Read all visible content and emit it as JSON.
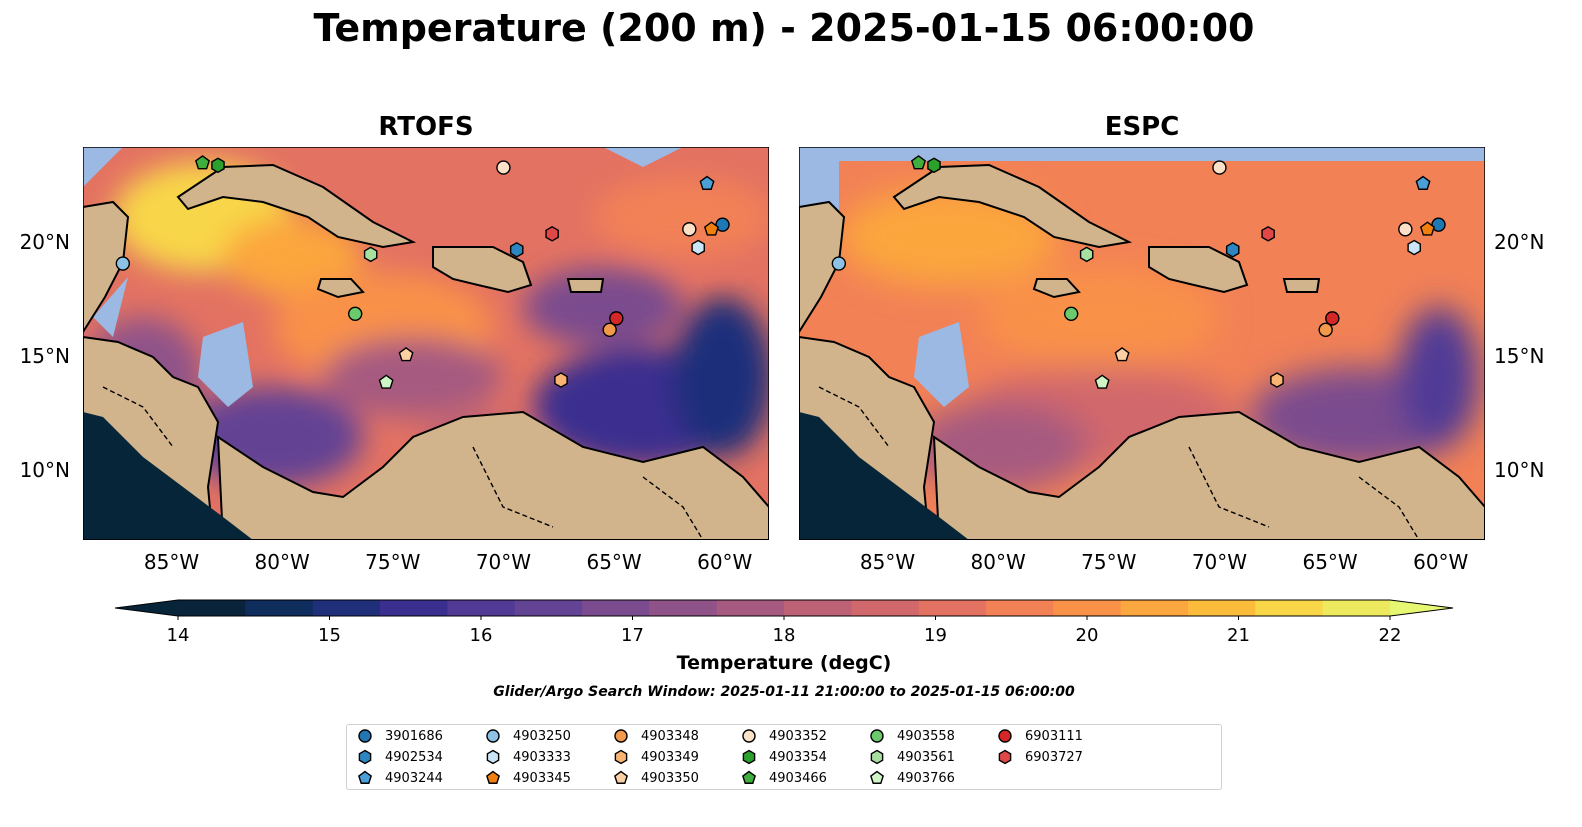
{
  "title": "Temperature (200 m) - 2025-01-15 06:00:00",
  "panels": [
    {
      "name": "RTOFS"
    },
    {
      "name": "ESPC"
    }
  ],
  "lon_ticks": [
    "85°W",
    "80°W",
    "75°W",
    "70°W",
    "65°W",
    "60°W"
  ],
  "lat_ticks": [
    "20°N",
    "15°N",
    "10°N"
  ],
  "map_extent": {
    "lon": [
      -89,
      -58
    ],
    "lat": [
      7,
      24.2
    ]
  },
  "colorbar": {
    "label": "Temperature (degC)",
    "ticks": [
      "14",
      "15",
      "16",
      "17",
      "18",
      "19",
      "20",
      "21",
      "22"
    ],
    "range": [
      14,
      22
    ],
    "colors": [
      "#08233a",
      "#0e2d5c",
      "#1f2f7a",
      "#3a2f8f",
      "#503a96",
      "#634394",
      "#7a4b8e",
      "#8f5389",
      "#a65a80",
      "#bc6176",
      "#d1686c",
      "#e37262",
      "#f28156",
      "#f99148",
      "#fba63e",
      "#fcbc3b",
      "#f8d648",
      "#eeea5f"
    ],
    "under_color": "#062538",
    "over_color": "#e8f772"
  },
  "search_window": "Glider/Argo Search Window: 2025-01-11 21:00:00 to 2025-01-15 06:00:00",
  "floats": [
    {
      "id": "3901686",
      "marker": "circle",
      "color": "#1f77b4",
      "lon": -60.1,
      "lat": 20.8
    },
    {
      "id": "4902534",
      "marker": "hexagon",
      "color": "#2e86c1",
      "lon": -69.4,
      "lat": 19.7
    },
    {
      "id": "4903244",
      "marker": "pentagon",
      "color": "#4a9fd6",
      "lon": -60.8,
      "lat": 22.6
    },
    {
      "id": "4903250",
      "marker": "circle",
      "color": "#8ec1e6",
      "lon": -87.2,
      "lat": 19.1
    },
    {
      "id": "4903333",
      "marker": "hexagon",
      "color": "#cbe5f8",
      "lon": -61.2,
      "lat": 19.8
    },
    {
      "id": "4903345",
      "marker": "pentagon",
      "color": "#f07f10",
      "lon": -60.6,
      "lat": 20.6
    },
    {
      "id": "4903348",
      "marker": "circle",
      "color": "#f39a4a",
      "lon": -65.2,
      "lat": 16.2
    },
    {
      "id": "4903349",
      "marker": "hexagon",
      "color": "#f9b474",
      "lon": -67.4,
      "lat": 14.0
    },
    {
      "id": "4903350",
      "marker": "pentagon",
      "color": "#fcd0a4",
      "lon": -74.4,
      "lat": 15.1
    },
    {
      "id": "4903352",
      "marker": "circle",
      "color": "#fde0c8",
      "lon": -61.6,
      "lat": 20.6
    },
    {
      "id": "4903354",
      "marker": "hexagon",
      "color": "#2ca02c",
      "lon": -82.9,
      "lat": 23.4
    },
    {
      "id": "4903466",
      "marker": "pentagon",
      "color": "#3fae3f",
      "lon": -83.6,
      "lat": 23.5
    },
    {
      "id": "4903558",
      "marker": "circle",
      "color": "#6cc96c",
      "lon": -76.7,
      "lat": 16.9
    },
    {
      "id": "4903561",
      "marker": "hexagon",
      "color": "#a8e0a0",
      "lon": -76.0,
      "lat": 19.5
    },
    {
      "id": "4903766",
      "marker": "pentagon",
      "color": "#cff5c6",
      "lon": -75.3,
      "lat": 13.9
    },
    {
      "id": "6903111",
      "marker": "circle",
      "color": "#d62728",
      "lon": -64.9,
      "lat": 16.7
    },
    {
      "id": "6903727",
      "marker": "hexagon",
      "color": "#e04848",
      "lon": -67.8,
      "lat": 20.4
    }
  ],
  "extra_marker": {
    "marker": "circle",
    "color": "#fde0c8",
    "lon": -70.0,
    "lat": 23.3
  },
  "legend_columns": 7
}
